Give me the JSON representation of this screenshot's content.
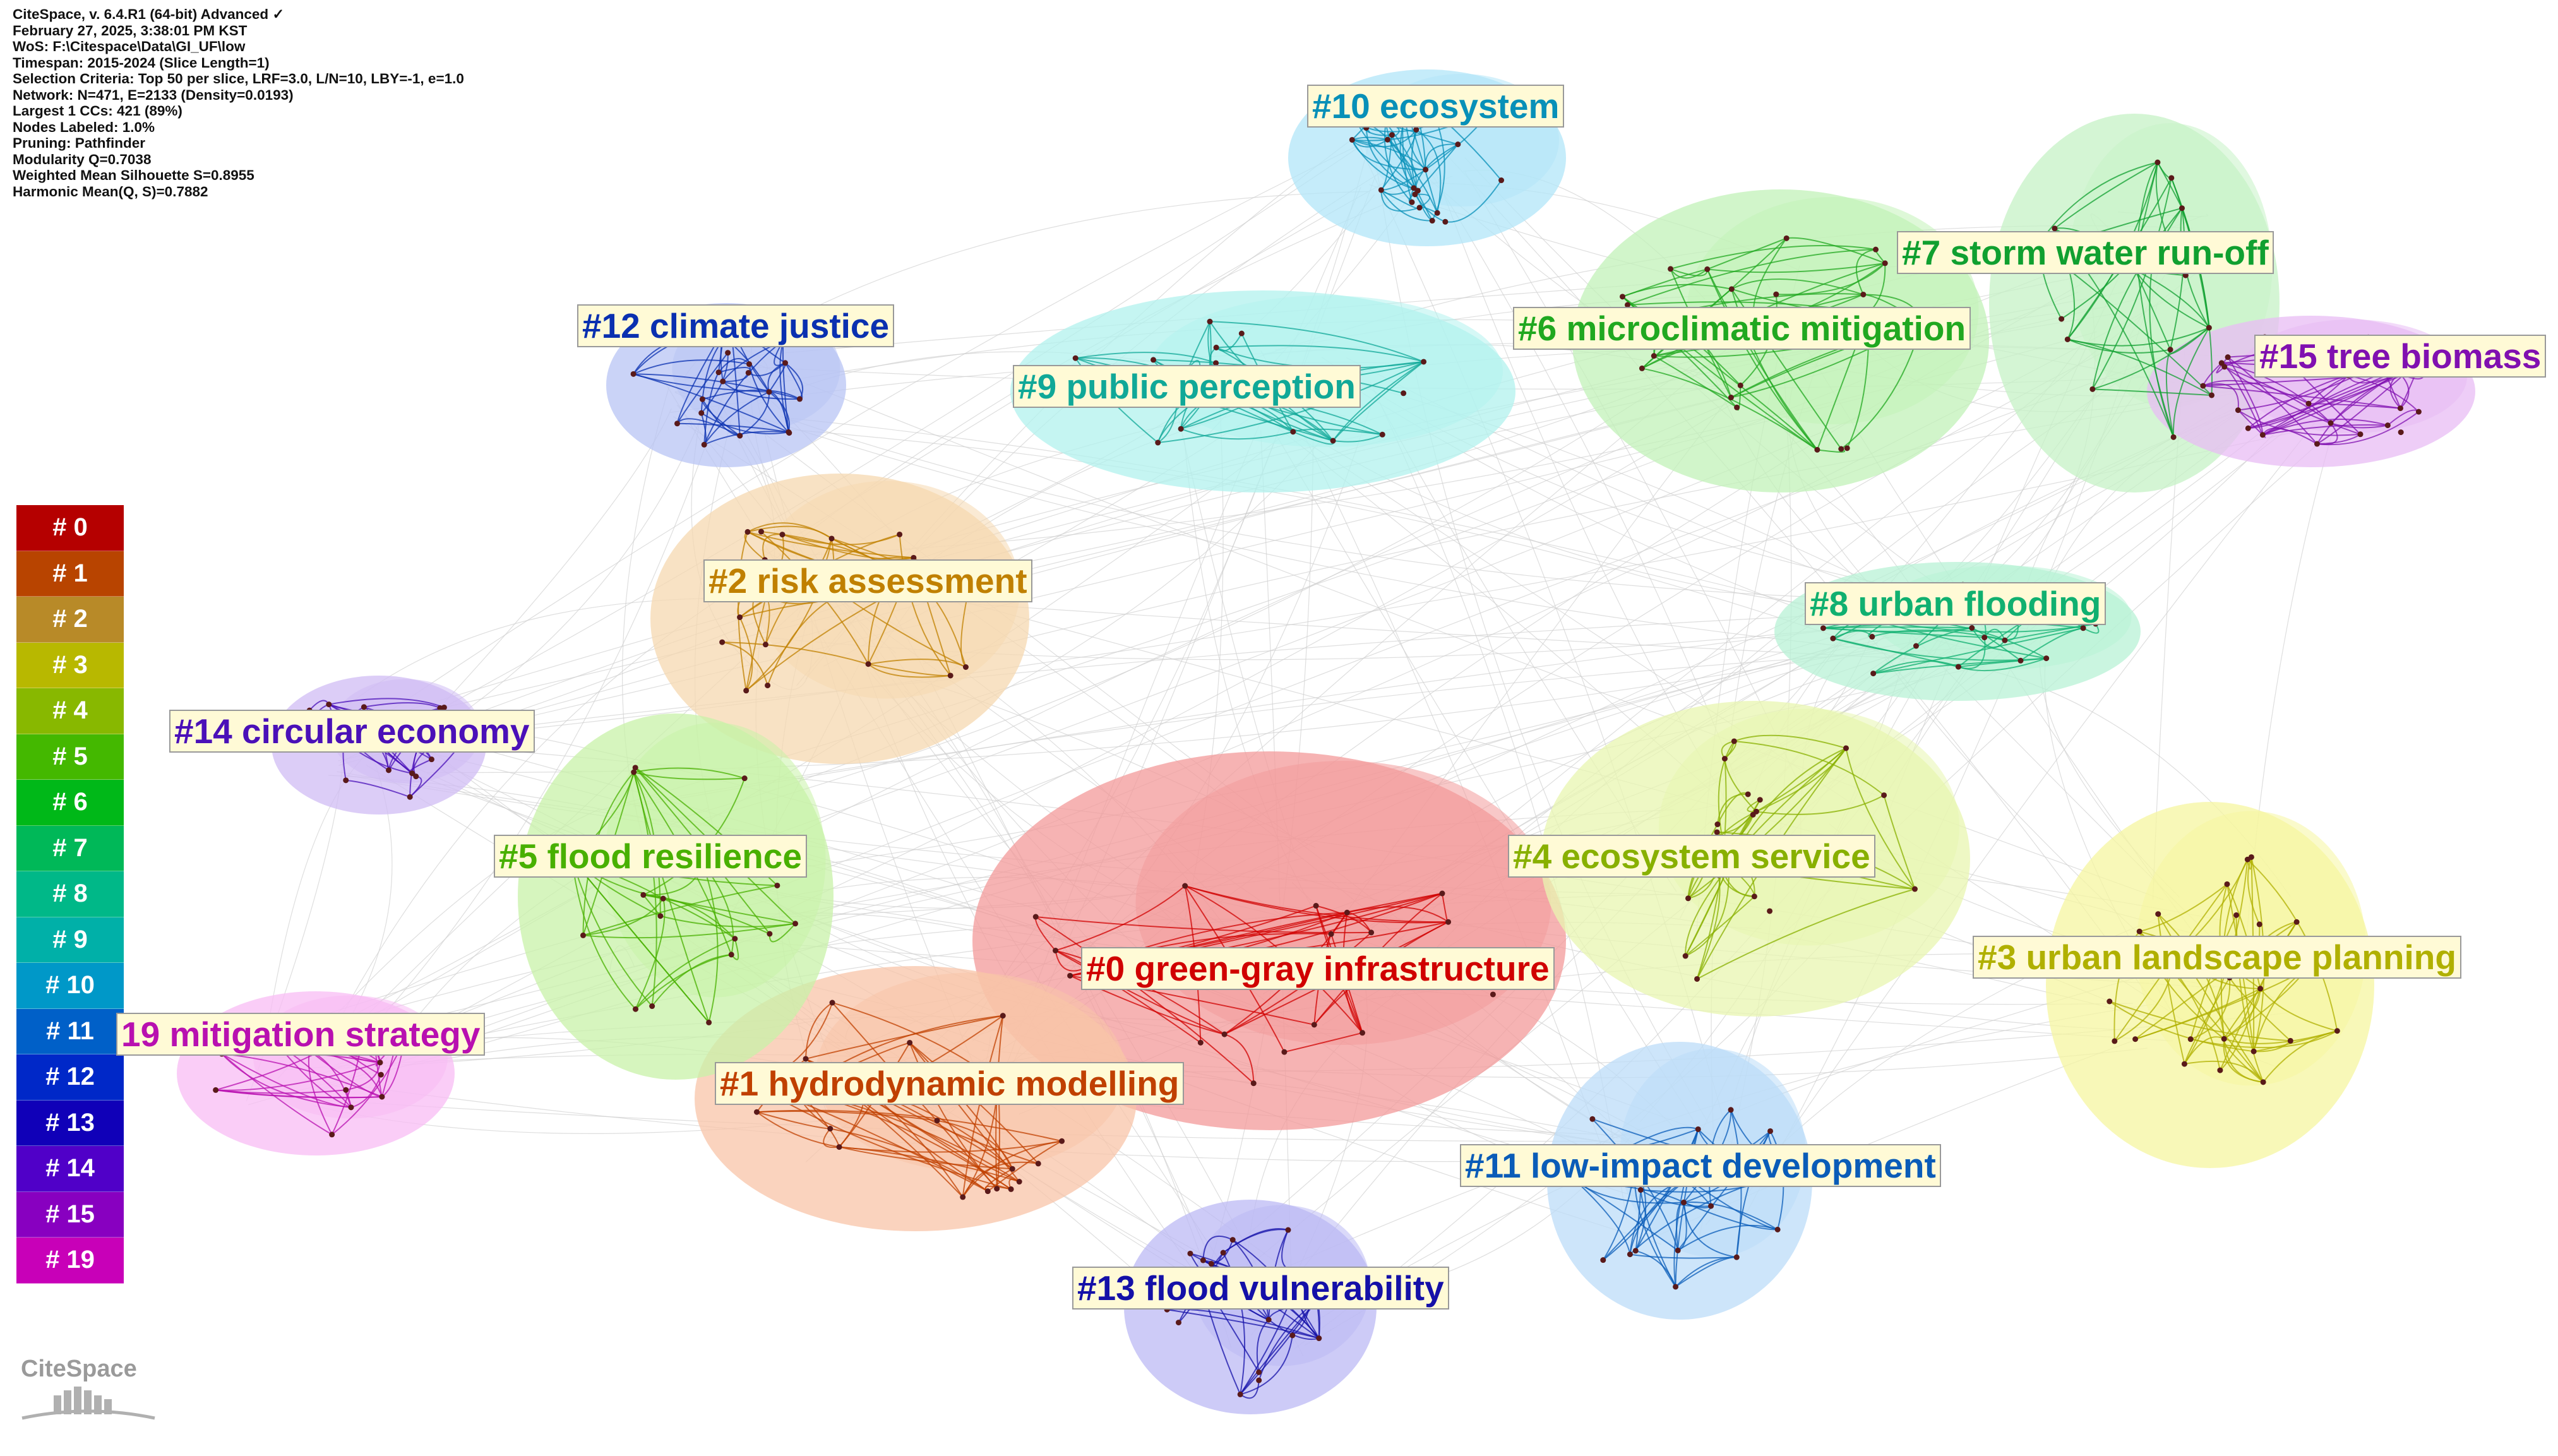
{
  "info": [
    "CiteSpace, v. 6.4.R1 (64-bit) Advanced ✓",
    "February 27, 2025, 3:38:01 PM KST",
    "WoS: F:\\Citespace\\Data\\GI_UF\\low",
    "Timespan: 2015-2024 (Slice Length=1)",
    "Selection Criteria: Top 50 per slice, LRF=3.0, L/N=10, LBY=-1, e=1.0",
    "Network: N=471, E=2133 (Density=0.0193)",
    "Largest 1 CCs: 421 (89%)",
    "Nodes Labeled: 1.0%",
    "Pruning: Pathfinder",
    "Modularity Q=0.7038",
    "Weighted Mean Silhouette S=0.8955",
    "Harmonic Mean(Q, S)=0.7882"
  ],
  "legend": [
    {
      "label": "# 0",
      "color": "#b50000"
    },
    {
      "label": "# 1",
      "color": "#b84400"
    },
    {
      "label": "# 2",
      "color": "#b88a28"
    },
    {
      "label": "# 3",
      "color": "#b8b800"
    },
    {
      "label": "# 4",
      "color": "#88b800"
    },
    {
      "label": "# 5",
      "color": "#44b800"
    },
    {
      "label": "# 6",
      "color": "#00b818"
    },
    {
      "label": "# 7",
      "color": "#00b858"
    },
    {
      "label": "# 8",
      "color": "#00b888"
    },
    {
      "label": "# 9",
      "color": "#00b0a8"
    },
    {
      "label": "# 10",
      "color": "#0098c8"
    },
    {
      "label": "# 11",
      "color": "#0060c8"
    },
    {
      "label": "# 12",
      "color": "#0028c8"
    },
    {
      "label": "# 13",
      "color": "#1000b8"
    },
    {
      "label": "# 14",
      "color": "#5000c8"
    },
    {
      "label": "# 15",
      "color": "#8800c0"
    },
    {
      "label": "# 19",
      "color": "#c800b8"
    }
  ],
  "clusters": [
    {
      "label": "#0 green-gray infrastructure",
      "color": "#d00000",
      "fill": "#f39a9a"
    },
    {
      "label": "#1 hydrodynamic modelling",
      "color": "#c04000",
      "fill": "#f8c4a8"
    },
    {
      "label": "#2 risk assessment",
      "color": "#c08000",
      "fill": "#f6d8b0"
    },
    {
      "label": "#3 urban landscape planning",
      "color": "#b0b000",
      "fill": "#f6f6a0"
    },
    {
      "label": "#4 ecosystem service",
      "color": "#88b000",
      "fill": "#e8f6b0"
    },
    {
      "label": "#5 flood resilience",
      "color": "#48b000",
      "fill": "#c8f2a8"
    },
    {
      "label": "#6 microclimatic mitigation",
      "color": "#20a820",
      "fill": "#c2f2b8"
    },
    {
      "label": "#7 storm water run-off",
      "color": "#10a030",
      "fill": "#c6f2c6"
    },
    {
      "label": "#8 urban flooding",
      "color": "#10b070",
      "fill": "#b8f2d6"
    },
    {
      "label": "#9 public perception",
      "color": "#10a898",
      "fill": "#b2f2ee"
    },
    {
      "label": "#10 ecosystem",
      "color": "#0890b8",
      "fill": "#b2e6f8"
    },
    {
      "label": "#11 low-impact development",
      "color": "#0a5cb8",
      "fill": "#bcdcf8"
    },
    {
      "label": "#12 climate justice",
      "color": "#0a30b0",
      "fill": "#b8c4f4"
    },
    {
      "label": "#13 flood vulnerability",
      "color": "#1410a8",
      "fill": "#bcbaf4"
    },
    {
      "label": "#14 circular economy",
      "color": "#4a10b8",
      "fill": "#d0bcf4"
    },
    {
      "label": "#15 tree biomass",
      "color": "#8010b0",
      "fill": "#e8bcf4"
    },
    {
      "label": "19 mitigation strategy",
      "color": "#b810b0",
      "fill": "#f8bcf4"
    }
  ],
  "logo": {
    "text": "CiteSpace"
  }
}
